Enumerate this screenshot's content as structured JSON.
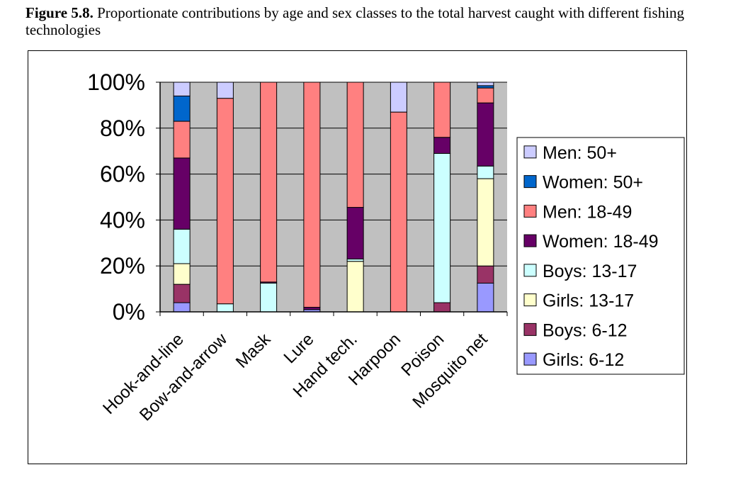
{
  "caption": {
    "label": "Figure 5.8.",
    "text": " Proportionate contributions by age and sex classes to the total harvest caught with different fishing technologies"
  },
  "chart_data": {
    "type": "bar",
    "stacked": true,
    "percent": true,
    "title": "",
    "xlabel": "",
    "ylabel": "",
    "ylim": [
      0,
      100
    ],
    "yticks": [
      "0%",
      "20%",
      "40%",
      "60%",
      "80%",
      "100%"
    ],
    "grid": true,
    "legend_position": "right",
    "plot_background": "#c0c0c0",
    "categories": [
      "Hook-and-line",
      "Bow-and-arrow",
      "Mask",
      "Lure",
      "Hand tech.",
      "Harpoon",
      "Poison",
      "Mosquito net"
    ],
    "series": [
      {
        "name": "Girls: 6-12",
        "color": "#9999ff",
        "values": [
          4,
          0,
          0,
          1,
          0,
          0,
          0,
          12.5
        ]
      },
      {
        "name": "Boys: 6-12",
        "color": "#993366",
        "values": [
          8,
          0,
          0,
          0,
          0,
          0,
          4,
          7.5
        ]
      },
      {
        "name": "Girls: 13-17",
        "color": "#ffffcc",
        "values": [
          9,
          0,
          0,
          0,
          22,
          0,
          0,
          38
        ]
      },
      {
        "name": "Boys: 13-17",
        "color": "#ccffff",
        "values": [
          15,
          3.5,
          12.5,
          0,
          1,
          0,
          65,
          5.5
        ]
      },
      {
        "name": "Women: 18-49",
        "color": "#660066",
        "values": [
          31,
          0,
          0.5,
          1,
          22.5,
          0,
          7,
          27.5
        ]
      },
      {
        "name": "Men: 18-49",
        "color": "#ff8080",
        "values": [
          16,
          89.5,
          87,
          98,
          54.5,
          87,
          24,
          6.5
        ]
      },
      {
        "name": "Women: 50+",
        "color": "#0066cc",
        "values": [
          11,
          0,
          0,
          0,
          0,
          0,
          0,
          1
        ]
      },
      {
        "name": "Men: 50+",
        "color": "#ccccff",
        "values": [
          6,
          7,
          0,
          0,
          0,
          13,
          0,
          1.5
        ]
      }
    ]
  }
}
